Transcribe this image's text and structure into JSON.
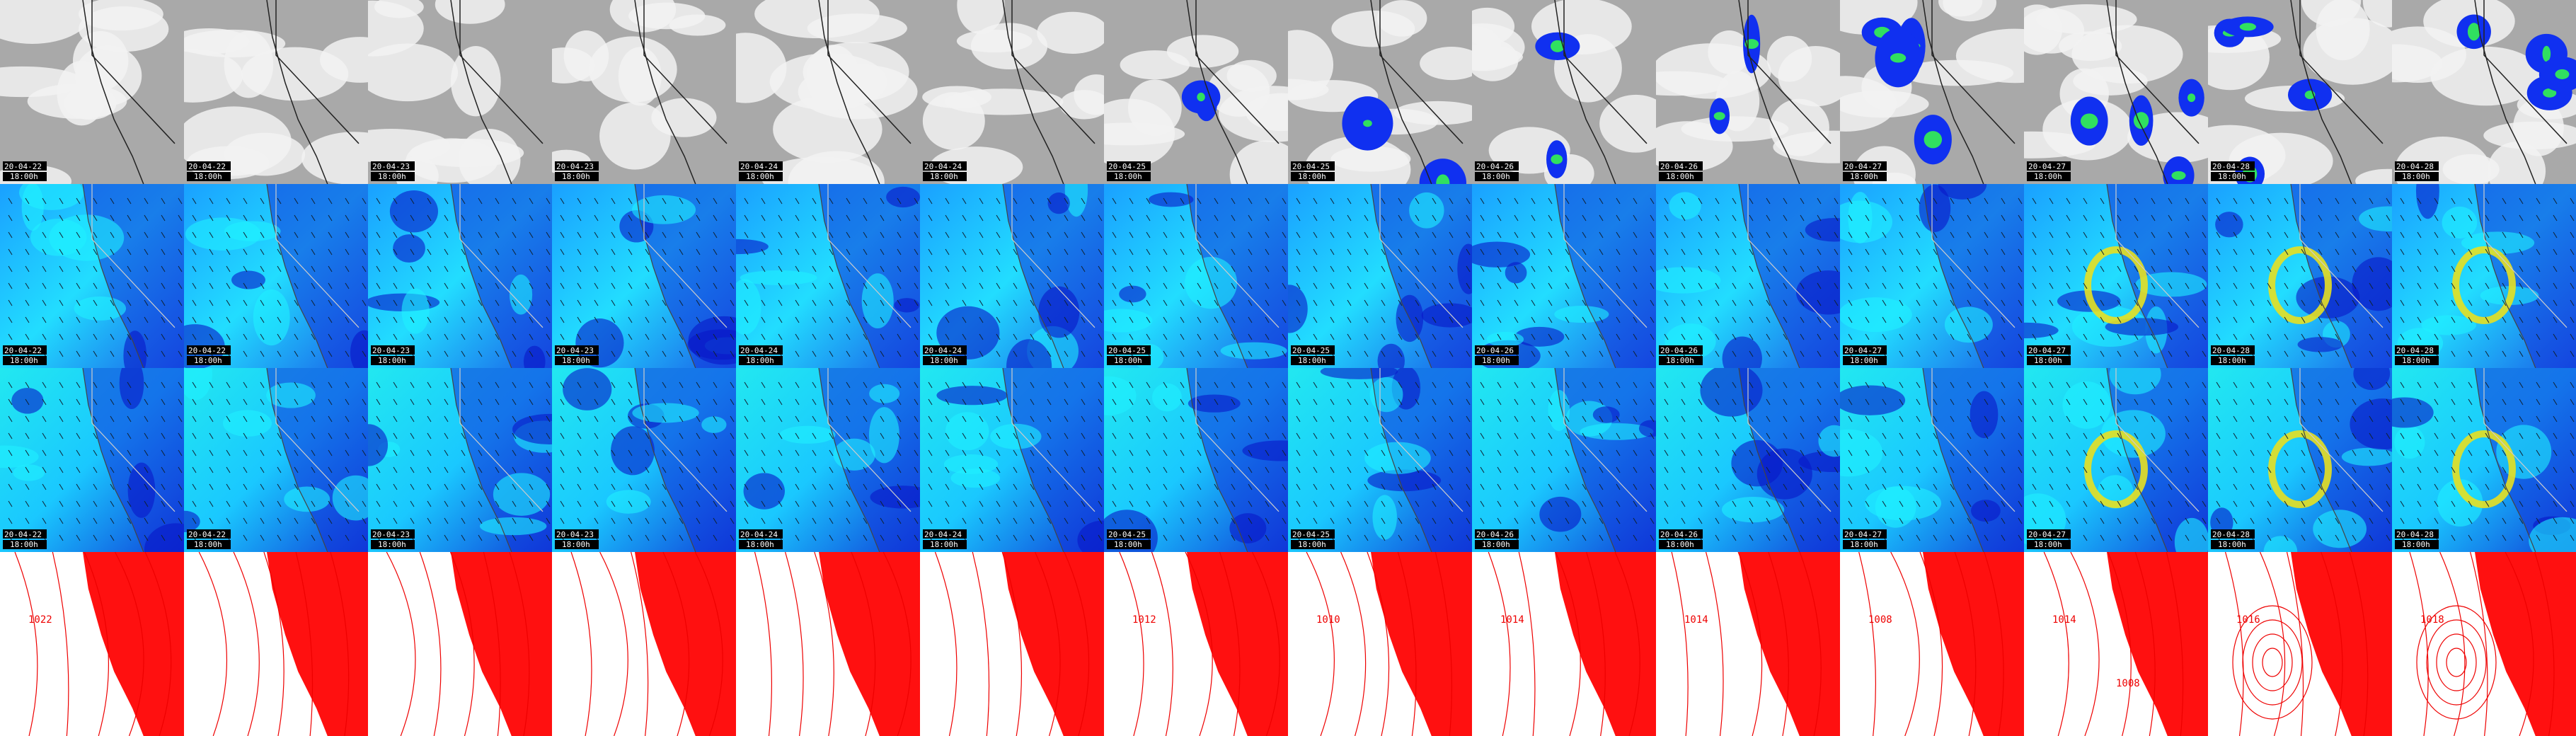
{
  "tiles": [
    {
      "date": "20-04-22",
      "time": "18:00h",
      "contours": [
        "1022"
      ]
    },
    {
      "date": "20-04-22",
      "time": "18:00h",
      "contours": []
    },
    {
      "date": "20-04-23",
      "time": "18:00h",
      "contours": []
    },
    {
      "date": "20-04-23",
      "time": "18:00h",
      "contours": []
    },
    {
      "date": "20-04-24",
      "time": "18:00h",
      "contours": []
    },
    {
      "date": "20-04-24",
      "time": "18:00h",
      "contours": []
    },
    {
      "date": "20-04-25",
      "time": "18:00h",
      "contours": [
        "1012"
      ]
    },
    {
      "date": "20-04-25",
      "time": "18:00h",
      "contours": [
        "1010"
      ]
    },
    {
      "date": "20-04-26",
      "time": "18:00h",
      "contours": [
        "1014"
      ]
    },
    {
      "date": "20-04-26",
      "time": "18:00h",
      "contours": [
        "1014"
      ]
    },
    {
      "date": "20-04-27",
      "time": "18:00h",
      "contours": [
        "1008"
      ]
    },
    {
      "date": "20-04-27",
      "time": "18:00h",
      "contours": [
        "1014",
        "1008"
      ]
    },
    {
      "date": "20-04-28",
      "time": "18:00h",
      "contours": [
        "1016"
      ]
    },
    {
      "date": "20-04-28",
      "time": "18:00h",
      "contours": [
        "1018"
      ]
    }
  ]
}
